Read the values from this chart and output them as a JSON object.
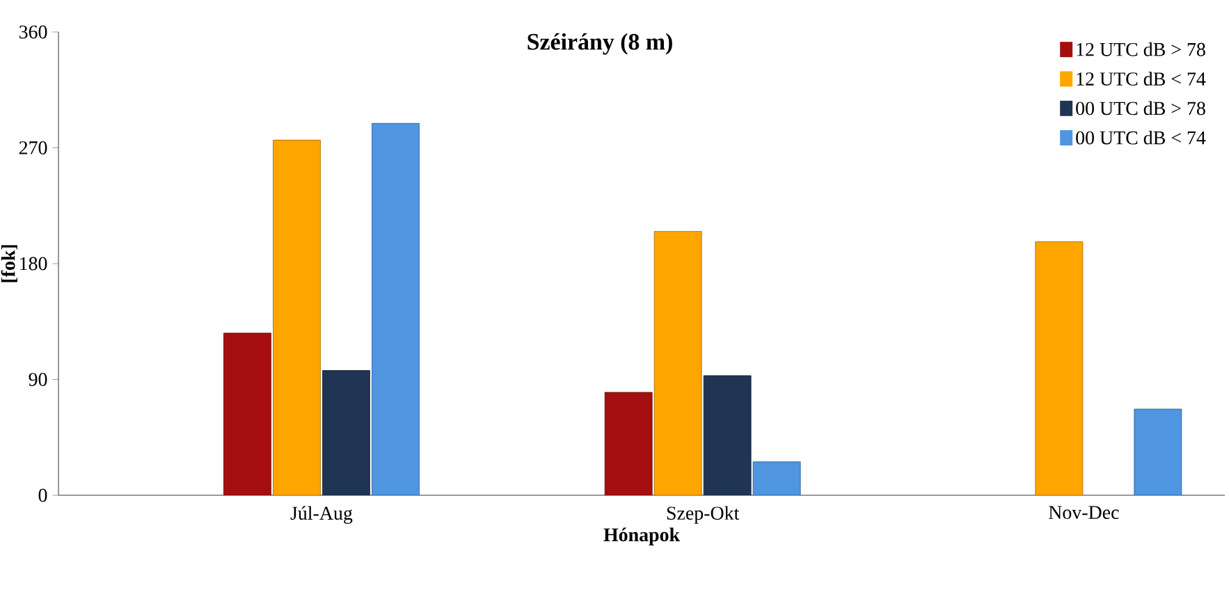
{
  "chart_data": {
    "type": "bar",
    "title": "Széirány (8 m)",
    "xlabel": "Hónapok",
    "ylabel": "[fok]",
    "categories": [
      "Júl-Aug",
      "Szep-Okt",
      "Nov-Dec"
    ],
    "series": [
      {
        "name": "12 UTC dB > 78",
        "color": "#a50f0f",
        "values": [
          126,
          80,
          null
        ]
      },
      {
        "name": "12 UTC dB < 74",
        "color": "#ffa500",
        "values": [
          276,
          205,
          197
        ]
      },
      {
        "name": "00 UTC dB > 78",
        "color": "#1f3553",
        "values": [
          97,
          93,
          null
        ]
      },
      {
        "name": "00 UTC dB < 74",
        "color": "#4f95e0",
        "values": [
          289,
          26,
          67
        ]
      }
    ],
    "ylim": [
      0,
      360
    ],
    "yticks": [
      0,
      90,
      180,
      270,
      360
    ],
    "grid": false,
    "legend": "top right"
  }
}
